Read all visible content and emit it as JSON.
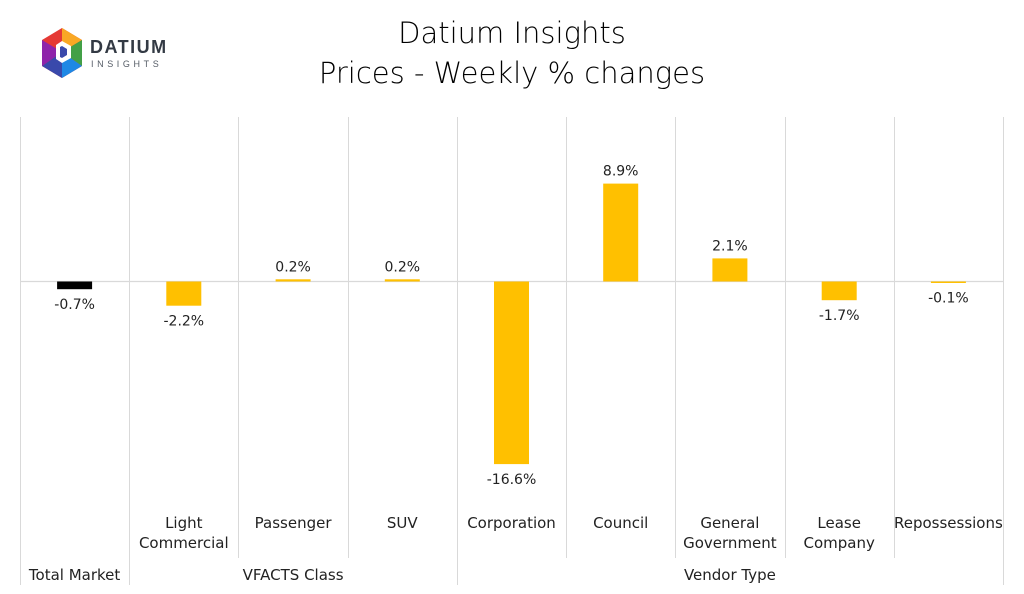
{
  "header": {
    "logo": {
      "word": "DATIUM",
      "sub": "INSIGHTS"
    },
    "title_line1": "Datium Insights",
    "title_line2": "Prices - Weekly % changes"
  },
  "colors": {
    "highlight": "#000000",
    "bar": "#FFC000",
    "grid": "#d9d9d9"
  },
  "chart_data": {
    "type": "bar",
    "categories": [
      [
        "Total Market"
      ],
      [
        "Light",
        "Commercial"
      ],
      [
        "Passenger"
      ],
      [
        "SUV"
      ],
      [
        "Corporation"
      ],
      [
        "Council"
      ],
      [
        "General",
        "Government"
      ],
      [
        "Lease",
        "Company"
      ],
      [
        "Repossessions"
      ]
    ],
    "values": [
      -0.7,
      -2.2,
      0.2,
      0.2,
      -16.6,
      8.9,
      2.1,
      -1.7,
      -0.1
    ],
    "data_labels": [
      "-0.7%",
      "-2.2%",
      "0.2%",
      "0.2%",
      "-16.6%",
      "8.9%",
      "2.1%",
      "-1.7%",
      "-0.1%"
    ],
    "highlight_index": 0,
    "groups": [
      {
        "label": "Total Market",
        "span": 1
      },
      {
        "label": "VFACTS Class",
        "span": 3
      },
      {
        "label": "Vendor Type",
        "span": 5
      }
    ],
    "ylim": [
      -20,
      15
    ],
    "grid": false,
    "legend": "none"
  }
}
